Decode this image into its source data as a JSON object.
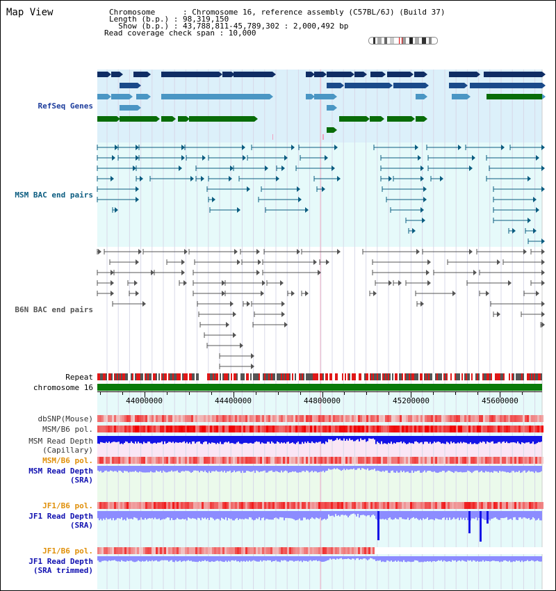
{
  "title": "Map View",
  "header": {
    "line1": "Chromosome      : Chromosome 16, reference assembly (C57BL/6J) (Build 37)",
    "line2": "Length (b.p.) : 98,319,150",
    "line3": "  Show (b.p.) : 43,788,811-45,789,302 : 2,000,492 bp",
    "line4": "Read coverage check span : 10,000"
  },
  "tracks": {
    "refseq": "RefSeq Genes",
    "msm_bac": "MSM BAC end pairs",
    "b6n_bac": "B6N BAC end pairs",
    "repeat": "Repeat",
    "chromosome": "chromosome 16",
    "dbsnp": "dbSNP(Mouse)",
    "msm_b6_pol": "MSM/B6 pol.",
    "msm_read_depth_cap": "MSM Read Depth\n(Capillary)",
    "msm_b6_pol2": "MSM/B6 pol.",
    "msm_read_depth_sra": "MSM Read Depth\n(SRA)",
    "jf1_b6_pol": "JF1/B6 pol.",
    "jf1_read_depth_sra": "JF1 Read Depth\n(SRA)",
    "jf1_b6_pol2": "JF1/B6 pol.",
    "jf1_read_depth_trim": "JF1 Read Depth\n(SRA trimmed)"
  },
  "ruler": {
    "ticks": [
      {
        "label": "44000000",
        "value": 44000000
      },
      {
        "label": "44400000",
        "value": 44400000
      },
      {
        "label": "44800000",
        "value": 44800000
      },
      {
        "label": "45200000",
        "value": 45200000
      },
      {
        "label": "45600000",
        "value": 45600000
      }
    ],
    "start": 43788811,
    "end": 45789302
  },
  "colors": {
    "refseq_bg": "#dcf0fa",
    "msm_bg": "#e6fafa",
    "gene_dark": "#0f2d64",
    "gene_mid": "#4a96c4",
    "gene_green": "#086c08",
    "msm_pair": "#0b5c80",
    "b6n_pair": "#555555",
    "read_depth_blue": "#1414e6",
    "read_depth_light": "#8c8cff",
    "chromosome": "#0a7a0a"
  }
}
